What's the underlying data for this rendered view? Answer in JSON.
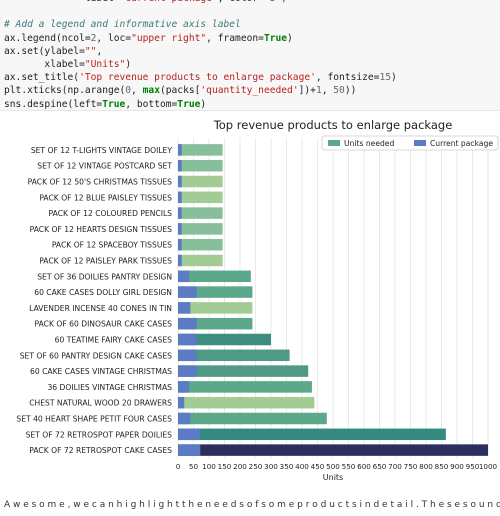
{
  "code": {
    "lines": [
      [
        {
          "t": "              label=",
          "c": ""
        },
        {
          "t": "\"current package\"",
          "c": "str"
        },
        {
          "t": ", color=",
          "c": ""
        },
        {
          "t": "\"b\"",
          "c": "str"
        },
        {
          "t": ")",
          "c": ""
        }
      ],
      [],
      [
        {
          "t": "# Add a legend and informative axis label",
          "c": "com"
        }
      ],
      [
        {
          "t": "ax.legend(ncol=",
          "c": ""
        },
        {
          "t": "2",
          "c": "num"
        },
        {
          "t": ", loc=",
          "c": ""
        },
        {
          "t": "\"upper right\"",
          "c": "str"
        },
        {
          "t": ", frameon=",
          "c": ""
        },
        {
          "t": "True",
          "c": "kw"
        },
        {
          "t": ")",
          "c": ""
        }
      ],
      [
        {
          "t": "ax.set(ylabel=",
          "c": ""
        },
        {
          "t": "\"\"",
          "c": "str"
        },
        {
          "t": ",",
          "c": ""
        }
      ],
      [
        {
          "t": "       xlabel=",
          "c": ""
        },
        {
          "t": "\"Units\"",
          "c": "str"
        },
        {
          "t": ")",
          "c": ""
        }
      ],
      [
        {
          "t": "ax.set_title(",
          "c": ""
        },
        {
          "t": "'Top revenue products to enlarge package'",
          "c": "str"
        },
        {
          "t": ", fontsize=",
          "c": ""
        },
        {
          "t": "15",
          "c": "num"
        },
        {
          "t": ")",
          "c": ""
        }
      ],
      [
        {
          "t": "plt.xticks(np.arange(",
          "c": ""
        },
        {
          "t": "0",
          "c": "num"
        },
        {
          "t": ", ",
          "c": ""
        },
        {
          "t": "max",
          "c": "kw"
        },
        {
          "t": "(packs[",
          "c": ""
        },
        {
          "t": "'quantity_needed'",
          "c": "str"
        },
        {
          "t": "])+",
          "c": ""
        },
        {
          "t": "1",
          "c": "num"
        },
        {
          "t": ", ",
          "c": ""
        },
        {
          "t": "50",
          "c": "num"
        },
        {
          "t": "))",
          "c": ""
        }
      ],
      [
        {
          "t": "sns.despine(left=",
          "c": ""
        },
        {
          "t": "True",
          "c": "kw"
        },
        {
          "t": ", bottom=",
          "c": ""
        },
        {
          "t": "True",
          "c": "kw"
        },
        {
          "t": ")",
          "c": ""
        }
      ]
    ]
  },
  "chart_data": {
    "type": "bar",
    "orientation": "horizontal",
    "title": "Top revenue products to enlarge package",
    "xlabel": "Units",
    "ylabel": "",
    "xlim": [
      0,
      1000
    ],
    "xticks": [
      0,
      50,
      100,
      150,
      200,
      250,
      300,
      350,
      400,
      450,
      500,
      550,
      600,
      650,
      700,
      750,
      800,
      850,
      900,
      950,
      1000
    ],
    "grid": "x",
    "legend_position": "top-right",
    "categories": [
      "SET OF 12 T-LIGHTS VINTAGE DOILEY",
      "SET OF 12  VINTAGE POSTCARD SET",
      "PACK OF 12 50'S CHRISTMAS TISSUES",
      "PACK OF 12 BLUE PAISLEY TISSUES",
      "PACK OF 12 COLOURED PENCILS",
      "PACK OF 12 HEARTS DESIGN TISSUES",
      "PACK OF 12 SPACEBOY TISSUES",
      "PACK OF 12 PAISLEY PARK TISSUES",
      "SET OF 36 DOILIES PANTRY DESIGN",
      "60 CAKE CASES DOLLY GIRL DESIGN",
      "LAVENDER INCENSE 40 CONES IN TIN",
      "PACK OF 60 DINOSAUR CAKE CASES",
      "60 TEATIME FAIRY CAKE CASES",
      "SET OF 60 PANTRY DESIGN CAKE CASES",
      "60 CAKE CASES VINTAGE CHRISTMAS",
      "36 DOILIES VINTAGE CHRISTMAS",
      "CHEST NATURAL WOOD 20 DRAWERS",
      "SET 40 HEART SHAPE PETIT FOUR CASES",
      "SET OF 72 RETROSPOT PAPER  DOILIES",
      "PACK OF 72 RETROSPOT CAKE CASES"
    ],
    "series": [
      {
        "name": "Units needed",
        "values": [
          144,
          144,
          144,
          144,
          144,
          144,
          144,
          144,
          235,
          240,
          240,
          240,
          300,
          360,
          420,
          432,
          440,
          480,
          864,
          1000
        ],
        "colors": [
          "#86bf99",
          "#86bf99",
          "#a3cc95",
          "#a3cc95",
          "#86bf99",
          "#86bf99",
          "#86bf99",
          "#a3cc95",
          "#5ba88a",
          "#5ba88a",
          "#a3cc95",
          "#5ba88a",
          "#3e8e7d",
          "#4f9a84",
          "#4f9a84",
          "#5ba88a",
          "#a3cc95",
          "#5ba88a",
          "#348a7f",
          "#2c2f5e"
        ]
      },
      {
        "name": "Current package",
        "values": [
          12,
          12,
          12,
          12,
          12,
          12,
          12,
          12,
          36,
          60,
          40,
          60,
          60,
          60,
          60,
          36,
          20,
          40,
          72,
          72
        ],
        "color": "#5b7bc4"
      }
    ]
  },
  "footer": {
    "text": "A w e s o m e ,   w e   c a n   h i g h l i g h t   t h e   n e e d s   o f   s o m e   p r o d u c t s   i n   d e t a i l .   T h e s e   s o u n d s   l e t a l   i t"
  }
}
